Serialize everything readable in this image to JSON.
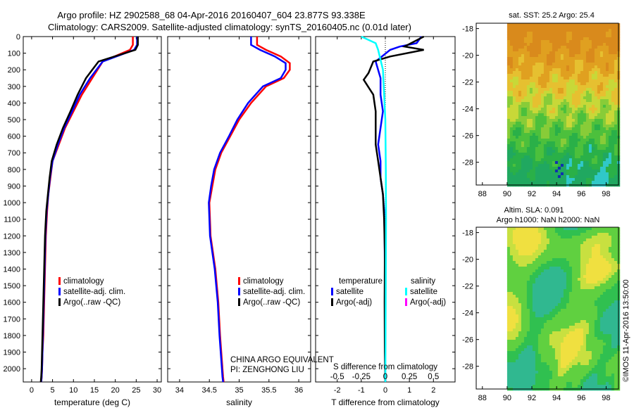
{
  "title_line1": "Argo profile: HZ 2902588_68 04-Apr-2016 20160407_604 23.877S 93.338E",
  "title_line2": "Climatology: CARS2009. Satellite-adjusted climatology: synTS_20160405.nc (0.01d later)",
  "colors": {
    "climatology": "#ff0000",
    "satellite": "#0000ff",
    "argo": "#000000",
    "cyan": "#00ffff",
    "magenta": "#ff00ff"
  },
  "chart_data": [
    {
      "type": "line",
      "panel": "temperature",
      "xlabel": "temperature (deg C)",
      "xlim": [
        -2,
        31
      ],
      "xticks": [
        0,
        5,
        10,
        15,
        20,
        25,
        30
      ],
      "ylim": [
        2080,
        0
      ],
      "yticks": [
        0,
        100,
        200,
        300,
        400,
        500,
        600,
        700,
        800,
        900,
        1000,
        1100,
        1200,
        1300,
        1400,
        1500,
        1600,
        1700,
        1800,
        1900,
        2000
      ],
      "legend": [
        "climatology",
        "satellite-adj. clim.",
        "Argo(..raw -QC)"
      ],
      "series": [
        {
          "name": "climatology",
          "color": "#ff0000",
          "x": [
            24.2,
            24.2,
            23.5,
            17,
            14.5,
            12,
            10,
            8,
            6.5,
            5,
            4.5,
            4,
            3.7,
            3.4,
            3.2,
            3,
            2.8,
            2.6,
            2.5,
            2.4,
            2.3
          ],
          "y": [
            0,
            50,
            80,
            150,
            250,
            350,
            450,
            550,
            650,
            750,
            850,
            950,
            1050,
            1200,
            1400,
            1600,
            1800,
            1900,
            2000,
            2050,
            2080
          ]
        },
        {
          "name": "satellite-adj. clim.",
          "color": "#0000ff",
          "x": [
            25.2,
            25.2,
            24.5,
            17,
            14,
            11.5,
            9.7,
            7.8,
            6.3,
            5,
            4.4,
            4,
            3.6,
            3.3,
            3.1,
            2.9,
            2.7,
            2.6,
            2.5,
            2.4,
            2.3
          ],
          "y": [
            0,
            50,
            80,
            150,
            250,
            350,
            450,
            550,
            650,
            750,
            850,
            950,
            1050,
            1200,
            1400,
            1600,
            1800,
            1900,
            2000,
            2050,
            2080
          ]
        },
        {
          "name": "Argo(..raw -QC)",
          "color": "#000000",
          "x": [
            25.4,
            25.4,
            24.8,
            16,
            13,
            11,
            9.3,
            7.5,
            6,
            4.8,
            4.3,
            3.9,
            3.5,
            3.2,
            3,
            2.8,
            2.6,
            2.5,
            2.4,
            2.3,
            2.2
          ],
          "y": [
            0,
            50,
            80,
            150,
            250,
            350,
            450,
            550,
            650,
            750,
            850,
            950,
            1050,
            1200,
            1400,
            1600,
            1800,
            1900,
            2000,
            2050,
            2080
          ]
        }
      ]
    },
    {
      "type": "line",
      "panel": "salinity",
      "xlabel": "salinity",
      "xlim": [
        33.8,
        36.2
      ],
      "xticks": [
        34,
        34.5,
        35,
        35.5,
        36
      ],
      "ylim": [
        2080,
        0
      ],
      "legend": [
        "climatology",
        "satellite-adj. clim.",
        "Argo(..raw -QC)"
      ],
      "annotation": [
        "CHINA ARGO EQUIVALENT",
        "PI: ZENGHONG LIU"
      ],
      "series": [
        {
          "name": "climatology",
          "color": "#ff0000",
          "x": [
            35.3,
            35.3,
            35.45,
            35.7,
            35.85,
            35.85,
            35.75,
            35.45,
            35.2,
            35,
            34.85,
            34.7,
            34.6,
            34.55,
            34.5,
            34.52,
            34.6,
            34.65,
            34.68,
            34.7,
            34.72,
            34.73,
            34.74
          ],
          "y": [
            0,
            50,
            80,
            120,
            160,
            200,
            250,
            300,
            400,
            500,
            600,
            700,
            800,
            900,
            1000,
            1200,
            1400,
            1600,
            1800,
            1900,
            2000,
            2050,
            2080
          ]
        },
        {
          "name": "satellite-adj. clim.",
          "color": "#0000ff",
          "x": [
            35.2,
            35.2,
            35.35,
            35.6,
            35.78,
            35.78,
            35.7,
            35.4,
            35.15,
            34.97,
            34.83,
            34.68,
            34.58,
            34.53,
            34.49,
            34.51,
            34.59,
            34.64,
            34.67,
            34.69,
            34.71,
            34.72,
            34.73
          ],
          "y": [
            0,
            50,
            80,
            120,
            160,
            200,
            250,
            300,
            400,
            500,
            600,
            700,
            800,
            900,
            1000,
            1200,
            1400,
            1600,
            1800,
            1900,
            2000,
            2050,
            2080
          ]
        }
      ]
    },
    {
      "type": "line",
      "panel": "difference",
      "xlabel": "T difference from climatology",
      "xlabel2": "S difference from climatology",
      "xlim": [
        -2.9,
        2.9
      ],
      "xticks": [
        -2,
        -1,
        0,
        1,
        2
      ],
      "xticks2": [
        -0.5,
        -0.25,
        0,
        0.25,
        0.5
      ],
      "xticks2_labels": [
        "-0.5",
        "-0.25",
        "0",
        "0.25",
        "0.5"
      ],
      "ylim": [
        2080,
        0
      ],
      "legend_temperature": [
        "temperature",
        "satellite",
        "Argo(-adj)"
      ],
      "legend_salinity": [
        "salinity",
        "satellite",
        "Argo(-adj)"
      ],
      "series": [
        {
          "name": "satellite",
          "color": "#0000ff",
          "x": [
            1.5,
            1.3,
            0.6,
            0.2,
            -0.4,
            -0.2,
            -0.2,
            -0.1,
            -0.2,
            -0.3,
            -0.2,
            -0.2,
            -0.1,
            -0.05,
            -0.03,
            -0.02,
            -0.02,
            -0.01,
            -0.01,
            0
          ],
          "y": [
            0,
            40,
            60,
            80,
            150,
            250,
            350,
            450,
            550,
            650,
            750,
            850,
            950,
            1050,
            1200,
            1400,
            1600,
            1800,
            2000,
            2080
          ]
        },
        {
          "name": "Argo(-adj)",
          "color": "#000000",
          "x": [
            1.6,
            0.8,
            1.6,
            0.2,
            -0.5,
            -0.7,
            -0.9,
            -0.5,
            -0.4,
            -0.4,
            -0.4,
            -0.3,
            -0.2,
            -0.1,
            -0.05,
            -0.02,
            -0.03,
            -0.02,
            0
          ],
          "y": [
            0,
            60,
            80,
            120,
            150,
            220,
            260,
            350,
            450,
            550,
            650,
            750,
            850,
            950,
            1100,
            1300,
            1600,
            1900,
            2080
          ]
        },
        {
          "name": "satellite",
          "color": "#00ffff",
          "x": [
            -1,
            -0.4,
            -0.3,
            -0.1,
            0,
            0.02,
            0.03,
            0.02,
            0.01,
            0
          ],
          "y": [
            0,
            40,
            80,
            200,
            500,
            800,
            1100,
            1400,
            1800,
            2080
          ]
        }
      ]
    },
    {
      "type": "heatmap",
      "panel": "sst-map",
      "title": "sat. SST: 25.2 Argo: 25.4",
      "xticks": [
        88,
        90,
        92,
        94,
        96,
        98
      ],
      "yticks": [
        -18,
        -20,
        -22,
        -24,
        -26,
        -28
      ]
    },
    {
      "type": "heatmap",
      "panel": "sla-map",
      "title_line1": "Altim. SLA: 0.091",
      "title_line2": "Argo h1000: NaN h2000: NaN",
      "xticks": [
        88,
        90,
        92,
        94,
        96,
        98
      ],
      "yticks": [
        -18,
        -20,
        -22,
        -24,
        -26,
        -28
      ]
    }
  ],
  "watermark": "©IMOS 11-Apr-2016 13:50:00"
}
